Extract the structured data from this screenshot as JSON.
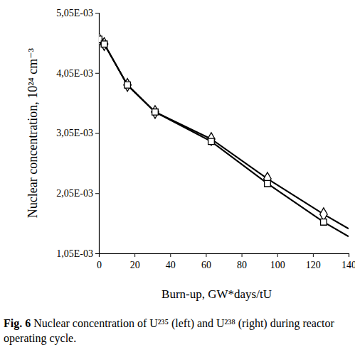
{
  "chart_data": {
    "type": "line",
    "title": "Fig. 6",
    "subtitle": "Nuclear concentration of U²³⁵ (left) and U²³⁸ (right) during reactor operating cycle.",
    "x_label": "Burn-up, GW*days/tU",
    "y_label": "Nuclear concentration, 10²⁴ cm⁻³",
    "xlim": [
      0,
      140
    ],
    "xticks": [
      0,
      20,
      40,
      60,
      80,
      100,
      120,
      140
    ],
    "ylim": [
      0.00105,
      0.00505
    ],
    "yticks": [
      {
        "value": 0.00105,
        "label": "1,05E-03"
      },
      {
        "value": 0.00205,
        "label": "2,05E-03"
      },
      {
        "value": 0.00305,
        "label": "3,05E-03"
      },
      {
        "value": 0.00405,
        "label": "4,05E-03"
      },
      {
        "value": 0.00505,
        "label": "5,05E-03"
      }
    ],
    "grid": false,
    "series": [
      {
        "type": "line",
        "color": "#000000",
        "marker": "none",
        "line_style": "solid",
        "x": [
          0,
          3,
          16,
          31.5,
          63,
          94.5,
          126,
          140
        ],
        "values": [
          0.00461,
          0.00453,
          0.00385,
          0.0034,
          0.00295,
          0.00229,
          0.0017,
          0.00146
        ]
      },
      {
        "type": "line",
        "color": "#000000",
        "marker": "none",
        "line_style": "solid",
        "x": [
          0,
          3,
          16,
          31.5,
          63,
          94.5,
          126,
          140
        ],
        "values": [
          0.00461,
          0.00453,
          0.00385,
          0.0034,
          0.00291,
          0.00221,
          0.00157,
          0.00133
        ]
      },
      {
        "type": "scatter",
        "color": "#000000",
        "marker": "diamond",
        "line_style": "none",
        "x": [
          0,
          3,
          16,
          31.5,
          63,
          94.5,
          126
        ],
        "values": [
          0.00461,
          0.00453,
          0.00385,
          0.0034,
          0.00295,
          0.00229,
          0.0017
        ]
      },
      {
        "type": "scatter",
        "color": "#000000",
        "marker": "square",
        "line_style": "none",
        "x": [
          0,
          3,
          16,
          31.5,
          63,
          94.5,
          126
        ],
        "values": [
          0.00461,
          0.00453,
          0.00385,
          0.0034,
          0.00291,
          0.00221,
          0.00157
        ]
      }
    ]
  }
}
